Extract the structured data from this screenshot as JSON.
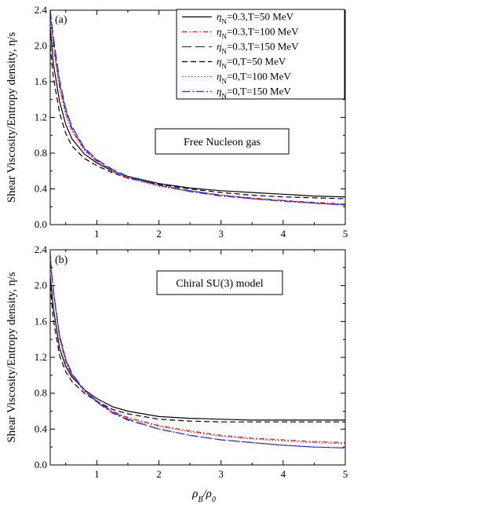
{
  "figure": {
    "xlabel_main": "ρ",
    "xlabel_sub1": "B",
    "xlabel_sep": "/ρ",
    "xlabel_sub2": "0"
  },
  "legend": {
    "eta_symbol": "η",
    "eta_sub": "N"
  },
  "chart_data": [
    {
      "type": "line",
      "panel_label": "(a)",
      "annotation": "Free Nucleon gas",
      "ylabel": "Shear Viscosity/Entropy density, η/s",
      "xlim": [
        0.25,
        5
      ],
      "ylim": [
        0,
        2.4
      ],
      "xticks": [
        1,
        2,
        3,
        4,
        5
      ],
      "yticks": [
        0.0,
        0.4,
        0.8,
        1.2,
        1.6,
        2.0,
        2.4
      ],
      "xtick_labels": [
        "1",
        "2",
        "3",
        "4",
        "5"
      ],
      "ytick_labels": [
        "0.0",
        "0.4",
        "0.8",
        "1.2",
        "1.6",
        "2.0",
        "2.4"
      ],
      "legend_position": "top-right",
      "grid": false,
      "series": [
        {
          "name": "=0.3,T=50 MeV",
          "color": "#000000",
          "dash": "solid",
          "x": [
            0.25,
            0.3,
            0.4,
            0.5,
            0.6,
            0.8,
            1.0,
            1.25,
            1.5,
            2.0,
            2.5,
            3.0,
            3.5,
            4.0,
            4.5,
            5.0
          ],
          "y": [
            2.2,
            1.8,
            1.38,
            1.12,
            0.96,
            0.79,
            0.69,
            0.6,
            0.54,
            0.46,
            0.41,
            0.38,
            0.36,
            0.34,
            0.32,
            0.31
          ]
        },
        {
          "name": "=0.3,T=100 MeV",
          "color": "#e41a1c",
          "dash": "dashdot",
          "x": [
            0.25,
            0.3,
            0.4,
            0.5,
            0.6,
            0.8,
            1.0,
            1.25,
            1.5,
            2.0,
            2.5,
            3.0,
            3.5,
            4.0,
            4.5,
            5.0
          ],
          "y": [
            2.4,
            2.0,
            1.55,
            1.25,
            1.06,
            0.84,
            0.71,
            0.6,
            0.53,
            0.44,
            0.38,
            0.33,
            0.3,
            0.27,
            0.25,
            0.23
          ]
        },
        {
          "name": "=0.3,T=150 MeV",
          "color": "#2233dd",
          "dash": "longdash",
          "x": [
            0.25,
            0.3,
            0.4,
            0.5,
            0.6,
            0.8,
            1.0,
            1.25,
            1.5,
            2.0,
            2.5,
            3.0,
            3.5,
            4.0,
            4.5,
            5.0
          ],
          "y": [
            2.4,
            2.1,
            1.62,
            1.3,
            1.1,
            0.86,
            0.73,
            0.62,
            0.54,
            0.44,
            0.38,
            0.33,
            0.29,
            0.27,
            0.24,
            0.22
          ]
        },
        {
          "name": "=0,T=50 MeV",
          "color": "#000000",
          "dash": "dashed",
          "x": [
            0.25,
            0.3,
            0.4,
            0.5,
            0.6,
            0.8,
            1.0,
            1.25,
            1.5,
            2.0,
            2.5,
            3.0,
            3.5,
            4.0,
            4.5,
            5.0
          ],
          "y": [
            2.0,
            1.65,
            1.25,
            1.02,
            0.88,
            0.74,
            0.66,
            0.58,
            0.52,
            0.45,
            0.4,
            0.36,
            0.33,
            0.31,
            0.3,
            0.29
          ]
        },
        {
          "name": "=0,T=100 MeV",
          "color": "#e41a1c",
          "dash": "dotted",
          "x": [
            0.25,
            0.3,
            0.4,
            0.5,
            0.6,
            0.8,
            1.0,
            1.25,
            1.5,
            2.0,
            2.5,
            3.0,
            3.5,
            4.0,
            4.5,
            5.0
          ],
          "y": [
            2.35,
            1.98,
            1.52,
            1.23,
            1.04,
            0.83,
            0.7,
            0.59,
            0.52,
            0.43,
            0.37,
            0.33,
            0.29,
            0.27,
            0.24,
            0.23
          ]
        },
        {
          "name": "=0,T=150 MeV",
          "color": "#3333cc",
          "dash": "dashdotlong",
          "x": [
            0.25,
            0.3,
            0.4,
            0.5,
            0.6,
            0.8,
            1.0,
            1.25,
            1.5,
            2.0,
            2.5,
            3.0,
            3.5,
            4.0,
            4.5,
            5.0
          ],
          "y": [
            2.38,
            2.05,
            1.58,
            1.28,
            1.08,
            0.85,
            0.72,
            0.61,
            0.53,
            0.44,
            0.37,
            0.32,
            0.29,
            0.26,
            0.24,
            0.22
          ]
        }
      ]
    },
    {
      "type": "line",
      "panel_label": "(b)",
      "annotation": "Chiral SU(3) model",
      "ylabel": "Shear Viscosity/Entropy density, η/s",
      "xlabel": "ρB/ρ0",
      "xlim": [
        0.25,
        5
      ],
      "ylim": [
        0,
        2.4
      ],
      "xticks": [
        1,
        2,
        3,
        4,
        5
      ],
      "yticks": [
        0.0,
        0.4,
        0.8,
        1.2,
        1.6,
        2.0,
        2.4
      ],
      "xtick_labels": [
        "1",
        "2",
        "3",
        "4",
        "5"
      ],
      "ytick_labels": [
        "0.0",
        "0.4",
        "0.8",
        "1.2",
        "1.6",
        "2.0",
        "2.4"
      ],
      "grid": false,
      "series": [
        {
          "name": "=0.3,T=50 MeV",
          "color": "#000000",
          "dash": "solid",
          "x": [
            0.25,
            0.3,
            0.4,
            0.5,
            0.6,
            0.8,
            1.0,
            1.25,
            1.5,
            2.0,
            2.5,
            3.0,
            3.5,
            4.0,
            4.5,
            5.0
          ],
          "y": [
            2.1,
            1.75,
            1.3,
            1.1,
            0.98,
            0.84,
            0.74,
            0.65,
            0.6,
            0.54,
            0.52,
            0.51,
            0.5,
            0.5,
            0.5,
            0.5
          ]
        },
        {
          "name": "=0.3,T=100 MeV",
          "color": "#e41a1c",
          "dash": "dashdot",
          "x": [
            0.25,
            0.3,
            0.4,
            0.5,
            0.6,
            0.8,
            1.0,
            1.25,
            1.5,
            2.0,
            2.5,
            3.0,
            3.5,
            4.0,
            4.5,
            5.0
          ],
          "y": [
            2.35,
            1.95,
            1.42,
            1.15,
            1.0,
            0.83,
            0.71,
            0.6,
            0.53,
            0.44,
            0.38,
            0.33,
            0.3,
            0.28,
            0.26,
            0.25
          ]
        },
        {
          "name": "=0.3,T=150 MeV",
          "color": "#2233dd",
          "dash": "longdash",
          "x": [
            0.25,
            0.3,
            0.4,
            0.5,
            0.6,
            0.8,
            1.0,
            1.25,
            1.5,
            2.0,
            2.5,
            3.0,
            3.5,
            4.0,
            4.5,
            5.0
          ],
          "y": [
            2.3,
            1.95,
            1.45,
            1.18,
            1.02,
            0.84,
            0.71,
            0.59,
            0.51,
            0.4,
            0.33,
            0.28,
            0.25,
            0.22,
            0.2,
            0.19
          ]
        },
        {
          "name": "=0,T=50 MeV",
          "color": "#000000",
          "dash": "dashed",
          "x": [
            0.25,
            0.3,
            0.4,
            0.5,
            0.6,
            0.8,
            1.0,
            1.25,
            1.5,
            2.0,
            2.5,
            3.0,
            3.5,
            4.0,
            4.5,
            5.0
          ],
          "y": [
            2.0,
            1.62,
            1.22,
            1.04,
            0.93,
            0.8,
            0.71,
            0.62,
            0.57,
            0.51,
            0.49,
            0.48,
            0.48,
            0.48,
            0.48,
            0.48
          ]
        },
        {
          "name": "=0,T=100 MeV",
          "color": "#e41a1c",
          "dash": "dotted",
          "x": [
            0.25,
            0.3,
            0.4,
            0.5,
            0.6,
            0.8,
            1.0,
            1.25,
            1.5,
            2.0,
            2.5,
            3.0,
            3.5,
            4.0,
            4.5,
            5.0
          ],
          "y": [
            2.32,
            1.93,
            1.41,
            1.14,
            0.99,
            0.82,
            0.7,
            0.59,
            0.52,
            0.43,
            0.37,
            0.32,
            0.29,
            0.27,
            0.25,
            0.24
          ]
        },
        {
          "name": "=0,T=150 MeV",
          "color": "#3333cc",
          "dash": "dashdotlong",
          "x": [
            0.25,
            0.3,
            0.4,
            0.5,
            0.6,
            0.8,
            1.0,
            1.25,
            1.5,
            2.0,
            2.5,
            3.0,
            3.5,
            4.0,
            4.5,
            5.0
          ],
          "y": [
            2.28,
            1.93,
            1.44,
            1.17,
            1.01,
            0.83,
            0.7,
            0.58,
            0.5,
            0.4,
            0.33,
            0.28,
            0.25,
            0.22,
            0.2,
            0.19
          ]
        }
      ]
    }
  ]
}
